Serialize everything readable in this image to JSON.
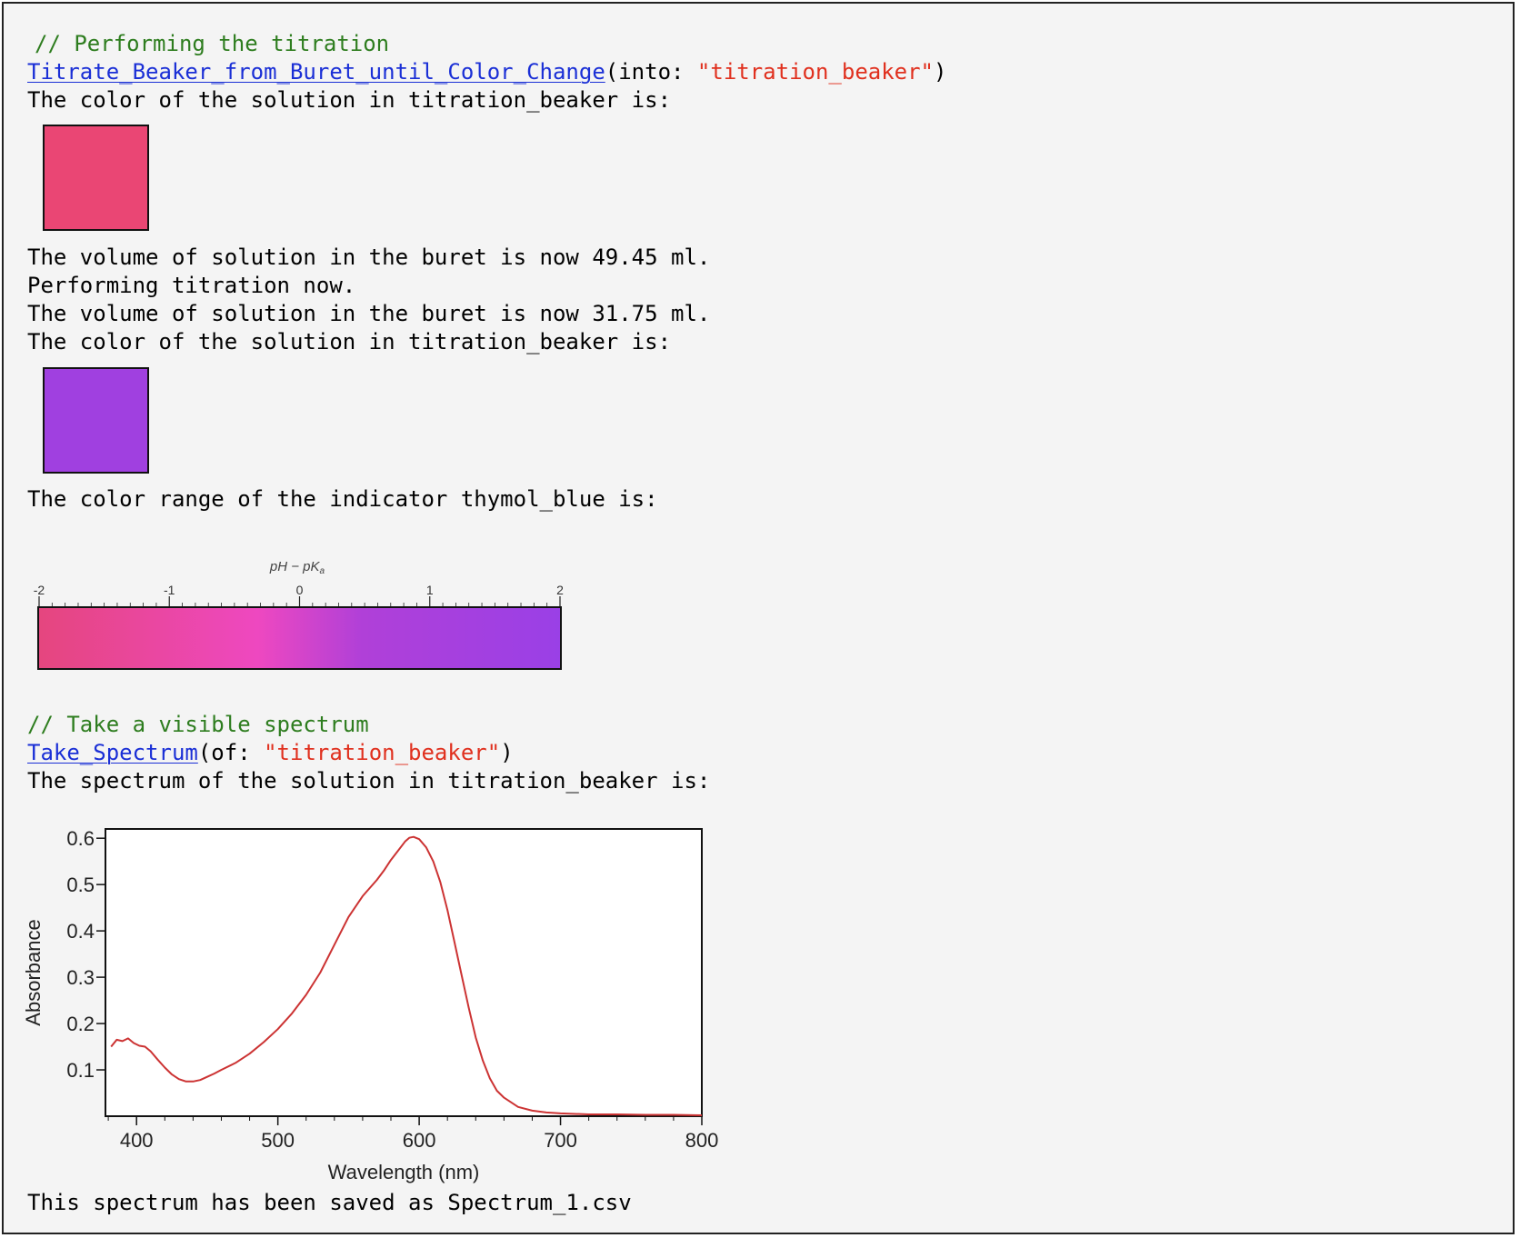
{
  "cell": {
    "titration": {
      "comment": "// Performing the titration",
      "fn": "Titrate_Beaker_from_Buret_until_Color_Change",
      "arg_prefix": "(into: ",
      "arg": "\"titration_beaker\"",
      "arg_suffix": ")"
    },
    "output": {
      "color_line_1": "The color of the solution in titration_beaker is:",
      "swatch_1_color": "#ea4674",
      "volume_line_1": "The volume of solution in the buret is now 49.45 ml.",
      "performing_line": "Performing titration now.",
      "volume_line_2": "The volume of solution in the buret is now 31.75 ml.",
      "color_line_2": "The color of the solution in titration_beaker is:",
      "swatch_2_color": "#a040e0",
      "indicator_line": "The color range of the indicator thymol_blue is:"
    },
    "indicator_scale": {
      "axis_label": "pH − pK",
      "axis_label_sub": "a",
      "ticks": [
        "-2",
        "-1",
        "0",
        "1",
        "2"
      ],
      "min": -2,
      "max": 2,
      "gradient": [
        {
          "at": 0.0,
          "color": "#e5467e"
        },
        {
          "at": 0.42,
          "color": "#ee48c0"
        },
        {
          "at": 0.62,
          "color": "#b040d8"
        },
        {
          "at": 1.0,
          "color": "#9a40e6"
        }
      ]
    },
    "spectrum_cmd": {
      "comment": "// Take a visible spectrum",
      "fn": "Take_Spectrum",
      "arg_prefix": "(of: ",
      "arg": "\"titration_beaker\"",
      "arg_suffix": ")",
      "result_line": "The spectrum of the solution in titration_beaker is:",
      "saved_line": "This spectrum has been saved as Spectrum_1.csv"
    }
  },
  "chart_data": {
    "type": "line",
    "title": "",
    "xlabel": "Wavelength (nm)",
    "ylabel": "Absorbance",
    "xlim": [
      378,
      800
    ],
    "ylim": [
      0.0,
      0.62
    ],
    "x_ticks": [
      400,
      500,
      600,
      700,
      800
    ],
    "y_ticks": [
      0.1,
      0.2,
      0.3,
      0.4,
      0.5,
      0.6
    ],
    "grid": false,
    "series": [
      {
        "color": "#cc3333",
        "x": [
          382,
          386,
          390,
          394,
          398,
          402,
          406,
          410,
          415,
          420,
          425,
          430,
          435,
          440,
          445,
          450,
          455,
          460,
          470,
          480,
          490,
          500,
          510,
          520,
          530,
          540,
          550,
          560,
          570,
          575,
          580,
          585,
          590,
          593,
          596,
          600,
          605,
          610,
          615,
          620,
          625,
          630,
          635,
          640,
          645,
          650,
          655,
          660,
          670,
          680,
          690,
          700,
          720,
          740,
          760,
          780,
          800
        ],
        "y": [
          0.15,
          0.165,
          0.162,
          0.168,
          0.158,
          0.152,
          0.15,
          0.14,
          0.122,
          0.105,
          0.09,
          0.08,
          0.075,
          0.075,
          0.078,
          0.085,
          0.092,
          0.1,
          0.115,
          0.135,
          0.16,
          0.188,
          0.222,
          0.262,
          0.31,
          0.37,
          0.43,
          0.475,
          0.51,
          0.53,
          0.553,
          0.573,
          0.593,
          0.601,
          0.603,
          0.598,
          0.58,
          0.55,
          0.505,
          0.445,
          0.375,
          0.305,
          0.235,
          0.17,
          0.12,
          0.082,
          0.055,
          0.04,
          0.02,
          0.012,
          0.008,
          0.006,
          0.004,
          0.004,
          0.003,
          0.003,
          0.002
        ]
      }
    ]
  }
}
